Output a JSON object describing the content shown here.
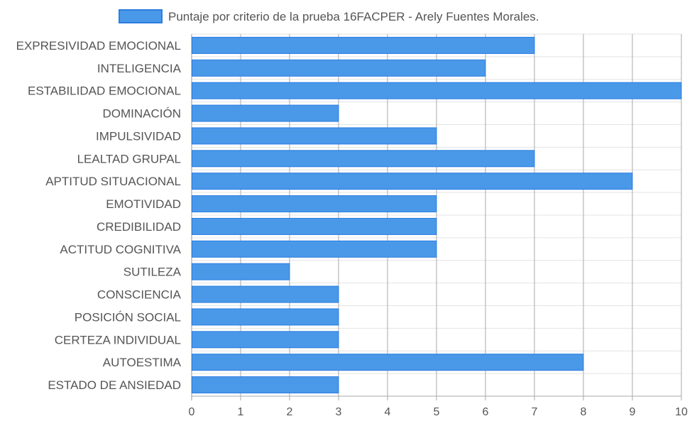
{
  "chart_data": {
    "type": "bar",
    "orientation": "horizontal",
    "legend": {
      "position": "top",
      "label": "Puntaje por criterio de la prueba 16FACPER - Arely Fuentes Morales."
    },
    "categories": [
      "EXPRESIVIDAD EMOCIONAL",
      "INTELIGENCIA",
      "ESTABILIDAD EMOCIONAL",
      "DOMINACIÓN",
      "IMPULSIVIDAD",
      "LEALTAD GRUPAL",
      "APTITUD SITUACIONAL",
      "EMOTIVIDAD",
      "CREDIBILIDAD",
      "ACTITUD COGNITIVA",
      "SUTILEZA",
      "CONSCIENCIA",
      "POSICIÓN SOCIAL",
      "CERTEZA INDIVIDUAL",
      "AUTOESTIMA",
      "ESTADO DE ANSIEDAD"
    ],
    "series": [
      {
        "name": "Puntaje por criterio de la prueba 16FACPER - Arely Fuentes Morales.",
        "values": [
          7,
          6,
          10,
          3,
          5,
          7,
          9,
          5,
          5,
          5,
          2,
          3,
          3,
          3,
          8,
          3
        ],
        "color": "#4a98e8",
        "border_color": "#2a7de1"
      }
    ],
    "xlim": [
      0,
      10
    ],
    "x_ticks": [
      "0",
      "1",
      "2",
      "3",
      "4",
      "5",
      "6",
      "7",
      "8",
      "9",
      "10"
    ],
    "grid": true
  }
}
